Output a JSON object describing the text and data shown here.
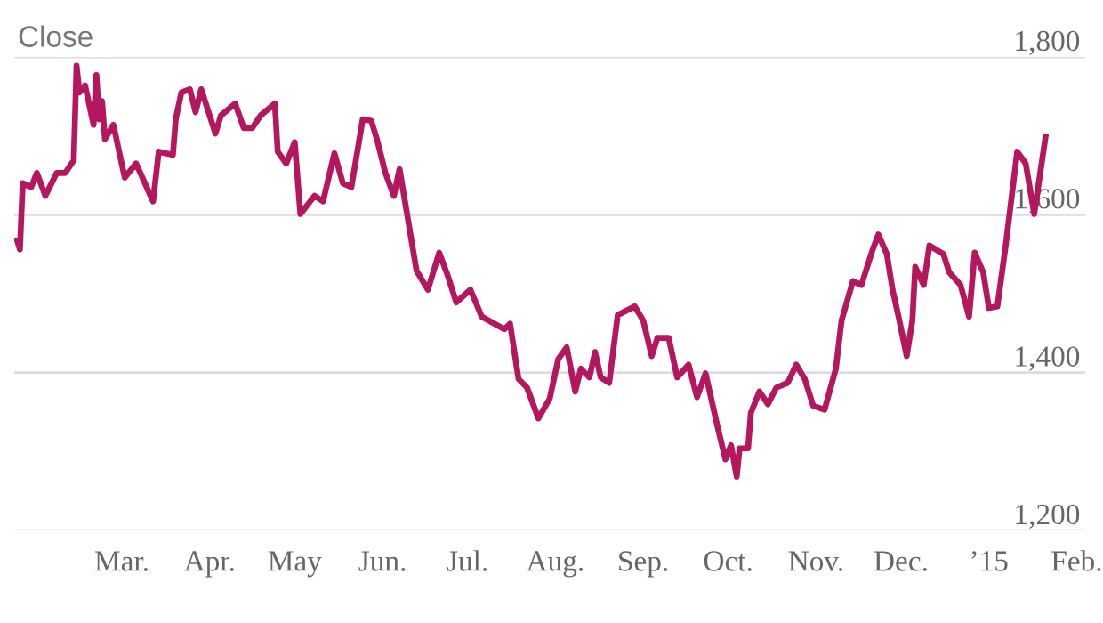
{
  "chart_data": {
    "type": "line",
    "ylabel": "Close",
    "x": [
      "2014-01-23",
      "2014-01-24",
      "2014-01-25",
      "2014-01-28",
      "2014-01-30",
      "2014-02-02",
      "2014-02-06",
      "2014-02-09",
      "2014-02-12",
      "2014-02-13",
      "2014-02-14",
      "2014-02-16",
      "2014-02-19",
      "2014-02-20",
      "2014-02-21",
      "2014-02-22",
      "2014-02-23",
      "2014-02-26",
      "2014-03-02",
      "2014-03-06",
      "2014-03-12",
      "2014-03-14",
      "2014-03-19",
      "2014-03-20",
      "2014-03-22",
      "2014-03-25",
      "2014-03-27",
      "2014-03-29",
      "2014-04-03",
      "2014-04-05",
      "2014-04-10",
      "2014-04-13",
      "2014-04-16",
      "2014-04-19",
      "2014-04-24",
      "2014-04-25",
      "2014-04-28",
      "2014-05-01",
      "2014-05-03",
      "2014-05-08",
      "2014-05-11",
      "2014-05-15",
      "2014-05-18",
      "2014-05-21",
      "2014-05-25",
      "2014-05-28",
      "2014-05-30",
      "2014-06-02",
      "2014-06-05",
      "2014-06-07",
      "2014-06-13",
      "2014-06-17",
      "2014-06-21",
      "2014-06-24",
      "2014-06-27",
      "2014-07-02",
      "2014-07-06",
      "2014-07-14",
      "2014-07-16",
      "2014-07-19",
      "2014-07-22",
      "2014-07-26",
      "2014-07-30",
      "2014-08-02",
      "2014-08-05",
      "2014-08-08",
      "2014-08-10",
      "2014-08-13",
      "2014-08-15",
      "2014-08-17",
      "2014-08-20",
      "2014-08-23",
      "2014-08-29",
      "2014-09-01",
      "2014-09-04",
      "2014-09-06",
      "2014-09-10",
      "2014-09-13",
      "2014-09-17",
      "2014-09-20",
      "2014-09-23",
      "2014-09-27",
      "2014-09-30",
      "2014-10-02",
      "2014-10-04",
      "2014-10-05",
      "2014-10-08",
      "2014-10-09",
      "2014-10-12",
      "2014-10-15",
      "2014-10-18",
      "2014-10-22",
      "2014-10-25",
      "2014-10-28",
      "2014-10-31",
      "2014-11-04",
      "2014-11-08",
      "2014-11-10",
      "2014-11-14",
      "2014-11-17",
      "2014-11-21",
      "2014-11-23",
      "2014-11-26",
      "2014-11-28",
      "2014-11-30",
      "2014-12-03",
      "2014-12-05",
      "2014-12-06",
      "2014-12-09",
      "2014-12-11",
      "2014-12-16",
      "2014-12-18",
      "2014-12-22",
      "2014-12-25",
      "2014-12-27",
      "2014-12-30",
      "2015-01-01",
      "2015-01-04",
      "2015-01-07",
      "2015-01-11",
      "2015-01-14",
      "2015-01-17",
      "2015-01-21"
    ],
    "series": [
      {
        "color": "#b5175e",
        "values": [
          1568,
          1556,
          1640,
          1635,
          1653,
          1624,
          1653,
          1653,
          1669,
          1789,
          1755,
          1764,
          1714,
          1777,
          1721,
          1744,
          1696,
          1714,
          1647,
          1665,
          1617,
          1680,
          1676,
          1721,
          1755,
          1759,
          1730,
          1759,
          1703,
          1726,
          1741,
          1710,
          1710,
          1726,
          1741,
          1680,
          1665,
          1692,
          1601,
          1624,
          1617,
          1678,
          1640,
          1635,
          1721,
          1719,
          1696,
          1653,
          1624,
          1658,
          1529,
          1505,
          1552,
          1523,
          1489,
          1505,
          1471,
          1455,
          1462,
          1392,
          1381,
          1342,
          1367,
          1417,
          1432,
          1376,
          1405,
          1394,
          1426,
          1394,
          1387,
          1473,
          1484,
          1466,
          1421,
          1444,
          1444,
          1394,
          1410,
          1369,
          1399,
          1335,
          1290,
          1308,
          1268,
          1304,
          1304,
          1349,
          1376,
          1360,
          1381,
          1387,
          1410,
          1392,
          1358,
          1353,
          1405,
          1466,
          1516,
          1511,
          1556,
          1575,
          1550,
          1505,
          1473,
          1421,
          1466,
          1534,
          1511,
          1561,
          1550,
          1527,
          1511,
          1471,
          1552,
          1527,
          1482,
          1484,
          1563,
          1680,
          1665,
          1601,
          1699
        ]
      }
    ],
    "xlim": [
      "2014-01-22",
      "2015-02-04"
    ],
    "xticks": [
      {
        "value": "2014-03-01",
        "label": "Mar."
      },
      {
        "value": "2014-04-01",
        "label": "Apr."
      },
      {
        "value": "2014-05-01",
        "label": "May"
      },
      {
        "value": "2014-06-01",
        "label": "Jun."
      },
      {
        "value": "2014-07-01",
        "label": "Jul."
      },
      {
        "value": "2014-08-01",
        "label": "Aug."
      },
      {
        "value": "2014-09-01",
        "label": "Sep."
      },
      {
        "value": "2014-10-01",
        "label": "Oct."
      },
      {
        "value": "2014-11-01",
        "label": "Nov."
      },
      {
        "value": "2014-12-01",
        "label": "Dec."
      },
      {
        "value": "2015-01-01",
        "label": "’15"
      },
      {
        "value": "2015-02-01",
        "label": "Feb."
      }
    ],
    "ylim": [
      1200,
      1800
    ],
    "yticks": [
      {
        "value": 1200,
        "label": "1,200"
      },
      {
        "value": 1400,
        "label": "1,400"
      },
      {
        "value": 1600,
        "label": "1,600"
      },
      {
        "value": 1800,
        "label": "1,800"
      }
    ],
    "grid": "y",
    "legend": false,
    "marker": "none",
    "line_style": "solid"
  }
}
